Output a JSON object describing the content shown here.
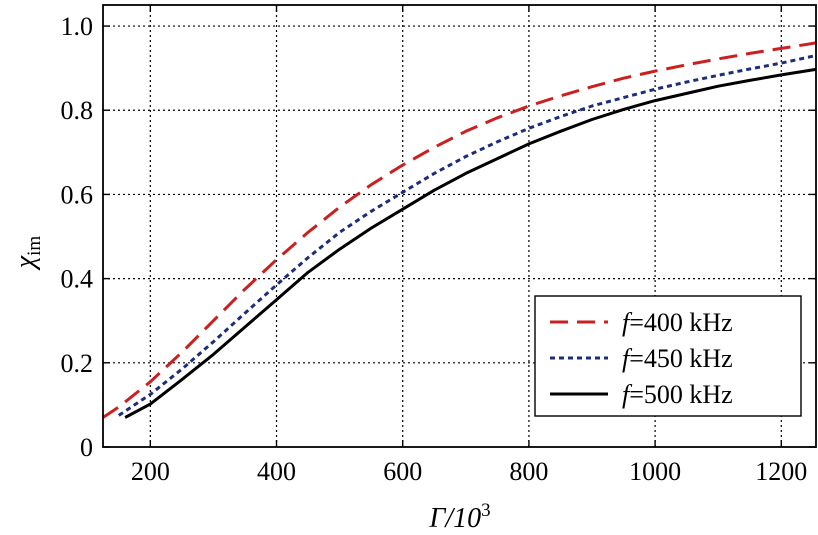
{
  "chart_data": {
    "type": "line",
    "xlabel": {
      "main": "Γ/10",
      "sup": "3"
    },
    "ylabel": {
      "main": "χ",
      "sub": "im"
    },
    "xlim": [
      125,
      1255
    ],
    "ylim": [
      0,
      1.05
    ],
    "x_ticks": [
      200,
      400,
      600,
      800,
      1000,
      1200
    ],
    "x_tick_labels": [
      "200",
      "400",
      "600",
      "800",
      "1000",
      "1200"
    ],
    "y_ticks": [
      0,
      0.2,
      0.4,
      0.6,
      0.8,
      1.0
    ],
    "y_tick_labels": [
      "0",
      "0.2",
      "0.4",
      "0.6",
      "0.8",
      "1.0"
    ],
    "grid": true,
    "legend_position": "bottom-right",
    "series": [
      {
        "name_prefix": "f",
        "name_value": "=400 kHz",
        "color": "#cc1f1f",
        "dash": "dashed",
        "x": [
          125,
          150,
          200,
          250,
          300,
          350,
          400,
          450,
          500,
          550,
          600,
          650,
          700,
          750,
          800,
          850,
          900,
          950,
          1000,
          1050,
          1100,
          1150,
          1200,
          1255
        ],
        "y": [
          0.07,
          0.095,
          0.155,
          0.225,
          0.3,
          0.375,
          0.445,
          0.51,
          0.57,
          0.623,
          0.67,
          0.712,
          0.75,
          0.782,
          0.81,
          0.834,
          0.856,
          0.876,
          0.893,
          0.908,
          0.922,
          0.935,
          0.947,
          0.96
        ]
      },
      {
        "name_prefix": "f",
        "name_value": "=450 kHz",
        "color": "#1c2d7a",
        "dash": "dotted",
        "x": [
          150,
          200,
          250,
          300,
          350,
          400,
          450,
          500,
          550,
          600,
          650,
          700,
          750,
          800,
          850,
          900,
          950,
          1000,
          1050,
          1100,
          1150,
          1200,
          1255
        ],
        "y": [
          0.075,
          0.125,
          0.185,
          0.25,
          0.318,
          0.385,
          0.45,
          0.51,
          0.56,
          0.605,
          0.65,
          0.69,
          0.725,
          0.757,
          0.785,
          0.81,
          0.83,
          0.85,
          0.867,
          0.883,
          0.898,
          0.912,
          0.93
        ]
      },
      {
        "name_prefix": "f",
        "name_value": "=500 kHz",
        "color": "#000000",
        "dash": "solid",
        "x": [
          160,
          200,
          250,
          300,
          350,
          400,
          450,
          500,
          550,
          600,
          650,
          700,
          750,
          800,
          850,
          900,
          950,
          1000,
          1050,
          1100,
          1150,
          1200,
          1255
        ],
        "y": [
          0.07,
          0.102,
          0.16,
          0.22,
          0.285,
          0.35,
          0.415,
          0.47,
          0.52,
          0.565,
          0.61,
          0.65,
          0.685,
          0.72,
          0.75,
          0.778,
          0.802,
          0.823,
          0.84,
          0.857,
          0.871,
          0.884,
          0.897
        ]
      }
    ]
  }
}
